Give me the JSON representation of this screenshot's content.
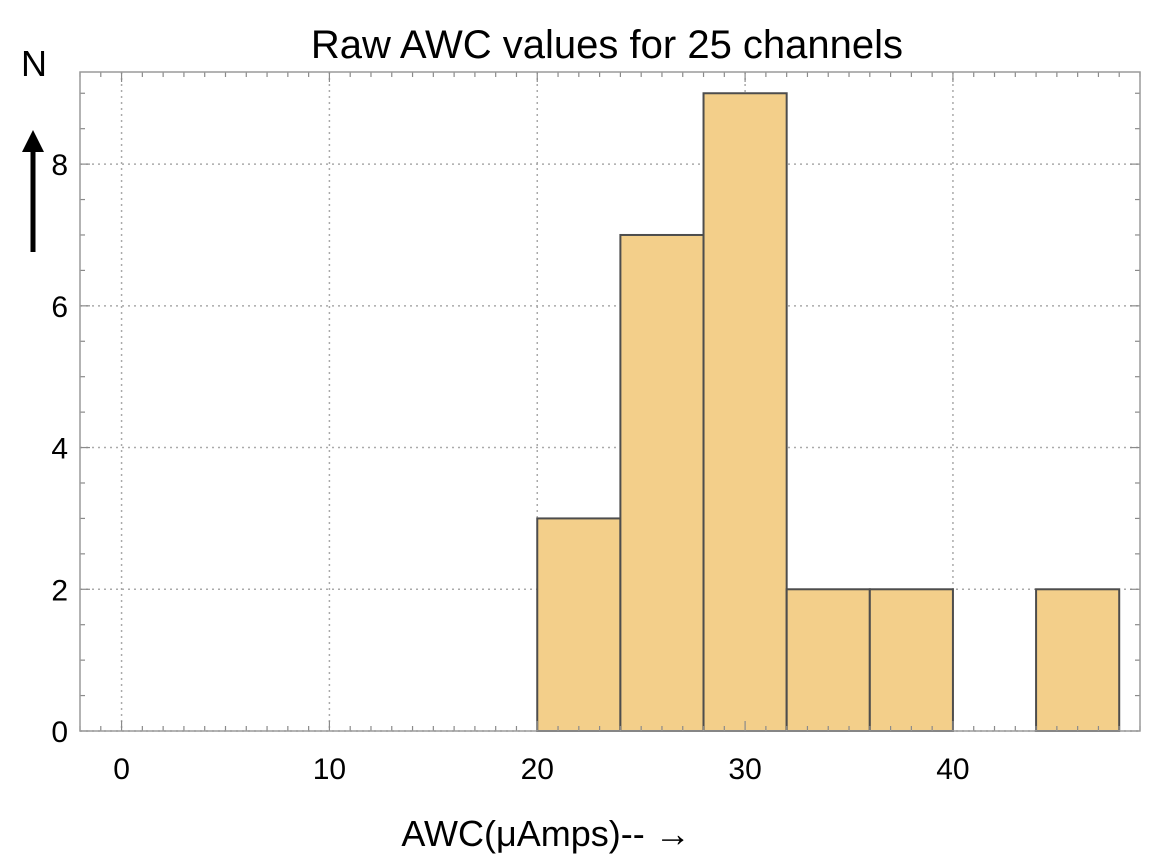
{
  "chart_data": {
    "type": "bar",
    "title": "Raw AWC values for 25 channels",
    "xlabel": "AWC(μAmps)-- →",
    "ylabel": "N",
    "xlim": [
      -2,
      49
    ],
    "ylim": [
      0,
      9.3
    ],
    "x_ticks": [
      0,
      10,
      20,
      30,
      40
    ],
    "y_ticks": [
      0,
      2,
      4,
      6,
      8
    ],
    "grid": true,
    "bar_color": "#f3cf8a",
    "bar_edge_color": "#4d4d4d",
    "bins": [
      {
        "x0": 20,
        "x1": 24,
        "value": 3
      },
      {
        "x0": 24,
        "x1": 28,
        "value": 7
      },
      {
        "x0": 28,
        "x1": 32,
        "value": 9
      },
      {
        "x0": 32,
        "x1": 36,
        "value": 2
      },
      {
        "x0": 36,
        "x1": 40,
        "value": 2
      },
      {
        "x0": 44,
        "x1": 48,
        "value": 2
      }
    ]
  }
}
